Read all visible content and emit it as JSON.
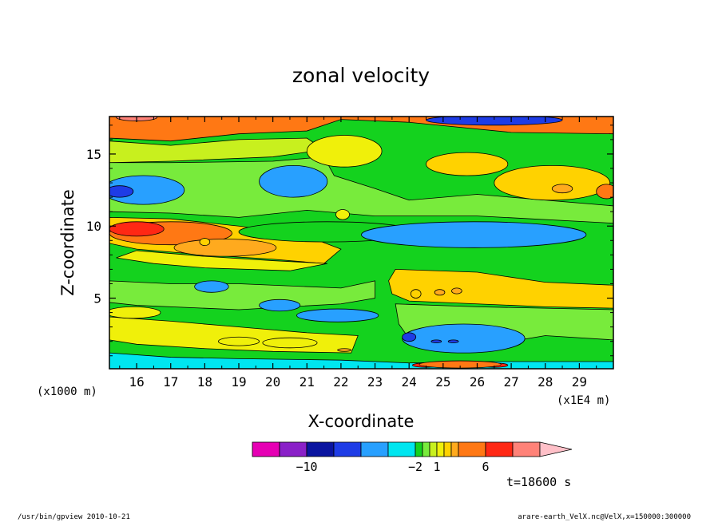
{
  "chart_data": {
    "type": "heatmap",
    "title": "zonal velocity",
    "xlabel": "X-coordinate",
    "ylabel": "Z-coordinate",
    "x_unit": "(x1E4 m)",
    "y_unit": "(x1000 m)",
    "xlim": [
      15.2,
      30.0
    ],
    "ylim": [
      0.1,
      17.6
    ],
    "x_ticks": [
      16,
      17,
      18,
      19,
      20,
      21,
      22,
      23,
      24,
      25,
      26,
      27,
      28,
      29
    ],
    "y_ticks": [
      5,
      10,
      15
    ],
    "colorbar": {
      "levels": [
        -14,
        -12,
        -10,
        -8,
        -6,
        -4,
        -2,
        -1,
        0,
        1,
        2,
        3,
        4,
        6,
        8,
        10
      ],
      "colors": [
        "#e600b4",
        "#8a20c8",
        "#0a14a0",
        "#1e3ce6",
        "#28a0ff",
        "#00e6f0",
        "#14d21e",
        "#78eb3c",
        "#c8f01e",
        "#f0f00a",
        "#ffd200",
        "#ffaa1e",
        "#ff7814",
        "#ff2814",
        "#ff8278",
        "#ffc0c8"
      ],
      "tick_labels": [
        {
          "value": -10,
          "label": "−10"
        },
        {
          "value": -2,
          "label": "−2"
        },
        {
          "value": 1,
          "label": "1"
        },
        {
          "value": 6,
          "label": "6"
        }
      ]
    }
  },
  "annotations": {
    "time": "t=18600 s",
    "footer_left": "/usr/bin/gpview   2010-10-21",
    "footer_right": "arare-earth_VelX.nc@VelX,x=150000:300000"
  }
}
